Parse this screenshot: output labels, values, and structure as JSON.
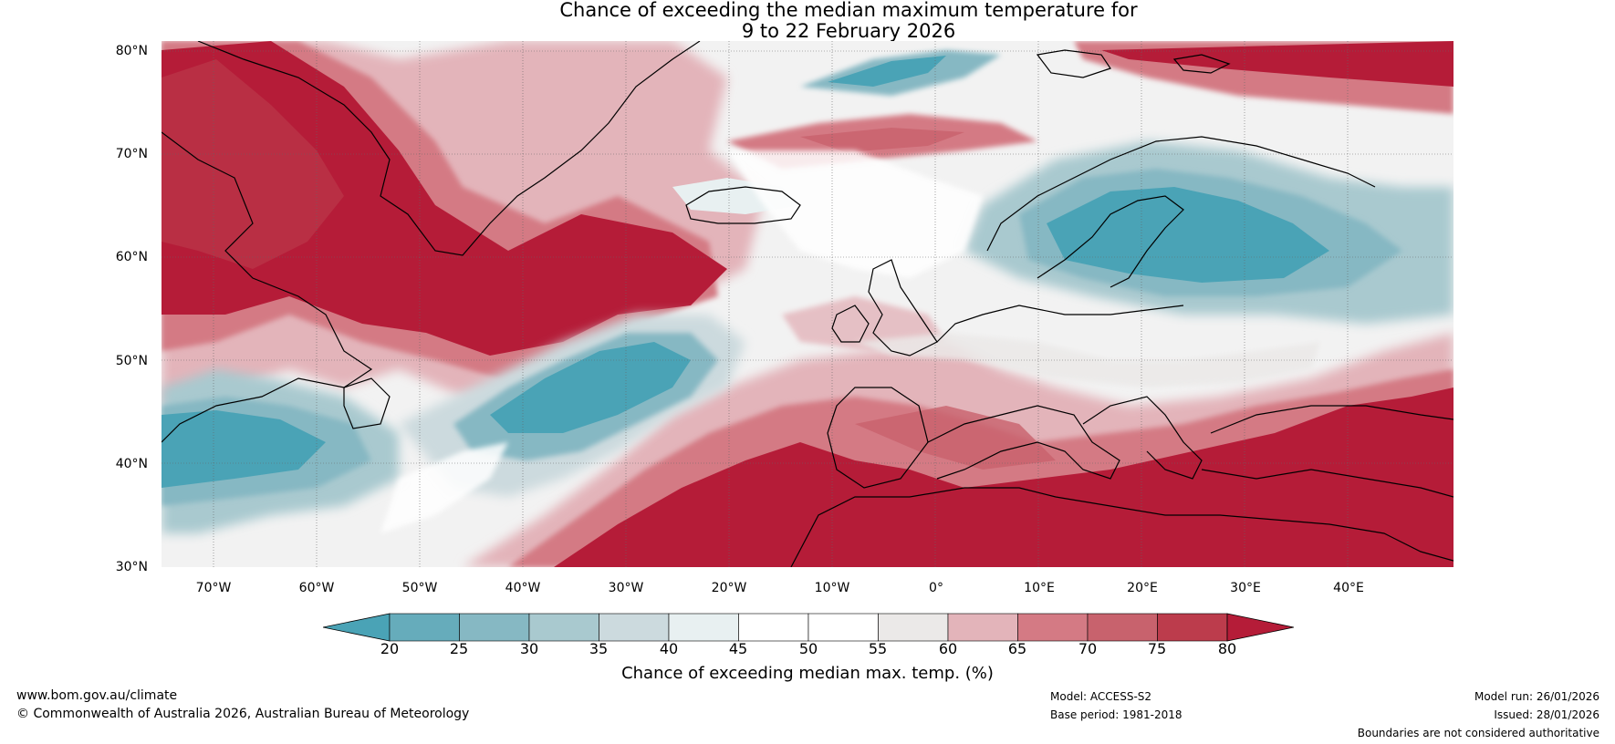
{
  "title": {
    "line1": "Chance of exceeding the median maximum temperature for",
    "line2": "9 to 22 February 2026"
  },
  "map": {
    "lat_labels": [
      "80°N",
      "70°N",
      "60°N",
      "50°N",
      "40°N",
      "30°N"
    ],
    "lon_labels": [
      "70°W",
      "60°W",
      "50°W",
      "40°W",
      "30°W",
      "20°W",
      "10°W",
      "0°",
      "10°E",
      "20°E",
      "30°E",
      "40°E"
    ],
    "lat_values": [
      80,
      70,
      60,
      50,
      40,
      30
    ],
    "lon_values": [
      -70,
      -60,
      -50,
      -40,
      -30,
      -20,
      -10,
      0,
      10,
      20,
      30,
      40
    ],
    "extent": {
      "lon_min": -75,
      "lon_max": 50,
      "lat_min": 30,
      "lat_max": 81
    }
  },
  "colorbar": {
    "ticks": [
      "20",
      "25",
      "30",
      "35",
      "40",
      "45",
      "50",
      "55",
      "60",
      "65",
      "70",
      "75",
      "80"
    ],
    "colors": [
      "#4aa3b6",
      "#66acbb",
      "#86b8c3",
      "#a9c9cf",
      "#ccdade",
      "#e8f0f1",
      "#ffffff",
      "#ffffff",
      "#ebe9e8",
      "#e3b4ba",
      "#d47a84",
      "#c8626d",
      "#bc3c4c",
      "#b51c38"
    ],
    "label": "Chance of exceeding median max. temp. (%)"
  },
  "footer": {
    "url": "www.bom.gov.au/climate",
    "copyright": "© Commonwealth of Australia 2026, Australian Bureau of Meteorology",
    "model": "Model: ACCESS-S2",
    "base_period": "Base period: 1981-2018",
    "model_run": "Model run: 26/01/2026",
    "issued": "Issued: 28/01/2026",
    "boundaries": "Boundaries are not considered authoritative"
  }
}
